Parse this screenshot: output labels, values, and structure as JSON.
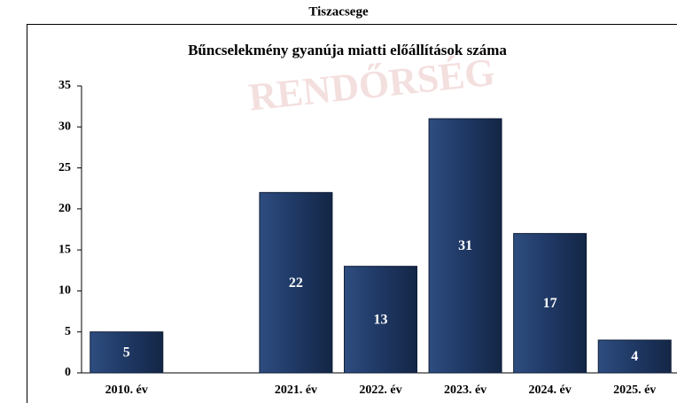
{
  "page_title": "Tiszacsege",
  "chart_data": {
    "type": "bar",
    "title": "Bűncselekmény gyanúja miatti előállítások száma",
    "watermark": "RENDŐRSÉG",
    "categories": [
      "2010. év",
      null,
      "2021. év",
      "2022. év",
      "2023. év",
      "2024. év",
      "2025. év"
    ],
    "values": [
      5,
      null,
      22,
      13,
      31,
      17,
      4
    ],
    "color": "#1f3864",
    "ylim": [
      0,
      35
    ],
    "yticks": [
      0,
      5,
      10,
      15,
      20,
      25,
      30,
      35
    ],
    "grid": false
  }
}
